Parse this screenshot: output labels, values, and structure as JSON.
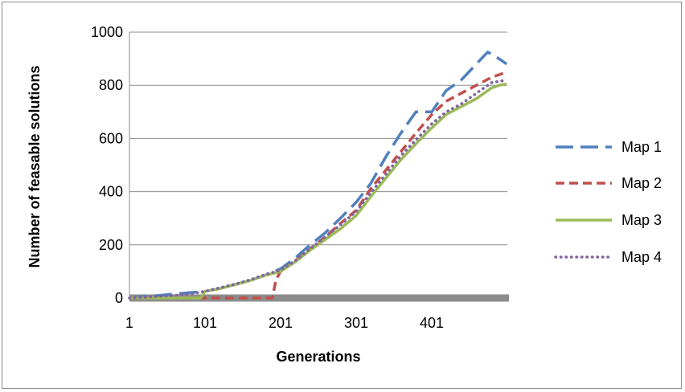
{
  "chart_data": {
    "type": "line",
    "title": "",
    "xlabel": "Generations",
    "ylabel": "Number of feasable solutions",
    "xlim": [
      1,
      501
    ],
    "ylim": [
      0,
      1000
    ],
    "x_ticks": [
      1,
      101,
      201,
      301,
      401
    ],
    "y_ticks": [
      0,
      200,
      400,
      600,
      800,
      1000
    ],
    "grid": "horizontal",
    "legend": "right",
    "series": [
      {
        "name": "Map 1",
        "color": "#4f81bd",
        "style": "long-dash",
        "x": [
          1,
          20,
          40,
          60,
          80,
          101,
          120,
          140,
          160,
          180,
          201,
          220,
          240,
          260,
          280,
          301,
          320,
          340,
          360,
          380,
          401,
          420,
          440,
          460,
          475,
          490,
          500
        ],
        "y": [
          0,
          5,
          10,
          15,
          20,
          25,
          35,
          50,
          65,
          85,
          110,
          150,
          200,
          245,
          300,
          360,
          430,
          530,
          620,
          700,
          700,
          780,
          820,
          880,
          925,
          900,
          880
        ]
      },
      {
        "name": "Map 2",
        "color": "#c0504d",
        "style": "short-dash",
        "x": [
          1,
          20,
          40,
          60,
          80,
          101,
          120,
          140,
          160,
          180,
          190,
          195,
          201,
          220,
          240,
          260,
          280,
          301,
          320,
          340,
          360,
          380,
          401,
          420,
          440,
          460,
          480,
          490,
          500
        ],
        "y": [
          0,
          0,
          0,
          0,
          0,
          0,
          0,
          0,
          0,
          0,
          0,
          70,
          100,
          140,
          185,
          230,
          280,
          330,
          410,
          480,
          550,
          620,
          690,
          740,
          770,
          800,
          830,
          840,
          850
        ]
      },
      {
        "name": "Map 3",
        "color": "#9bbb59",
        "style": "solid",
        "x": [
          1,
          20,
          40,
          60,
          80,
          95,
          101,
          120,
          140,
          160,
          180,
          201,
          220,
          240,
          260,
          280,
          301,
          320,
          340,
          360,
          380,
          401,
          420,
          440,
          460,
          480,
          490,
          500
        ],
        "y": [
          0,
          0,
          0,
          0,
          0,
          0,
          25,
          35,
          50,
          65,
          85,
          100,
          135,
          180,
          220,
          260,
          310,
          380,
          450,
          520,
          580,
          640,
          690,
          720,
          750,
          790,
          800,
          805
        ]
      },
      {
        "name": "Map 4",
        "color": "#8064a2",
        "style": "dotted",
        "x": [
          1,
          20,
          40,
          60,
          80,
          101,
          120,
          140,
          160,
          180,
          201,
          220,
          240,
          260,
          280,
          301,
          320,
          340,
          360,
          380,
          401,
          420,
          440,
          460,
          480,
          490,
          500
        ],
        "y": [
          0,
          3,
          6,
          10,
          15,
          25,
          38,
          52,
          68,
          88,
          105,
          140,
          185,
          230,
          275,
          325,
          395,
          465,
          535,
          595,
          655,
          700,
          730,
          770,
          810,
          815,
          820
        ]
      }
    ]
  }
}
